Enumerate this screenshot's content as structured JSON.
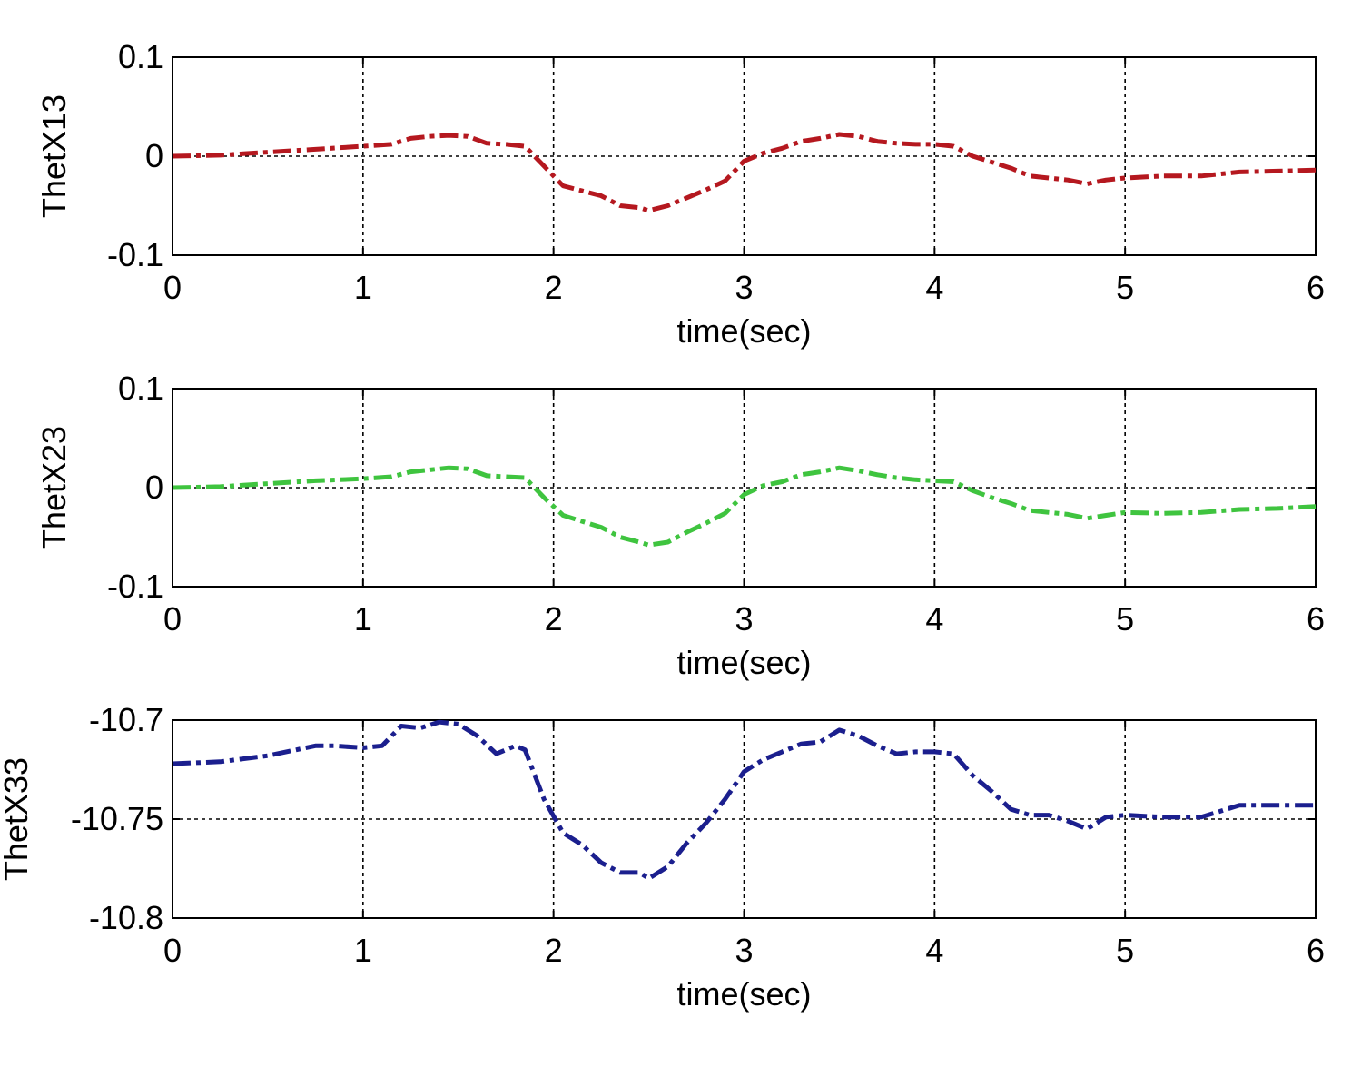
{
  "chart_data": [
    {
      "type": "line",
      "xlabel": "time(sec)",
      "ylabel": "ThetX13",
      "xlim": [
        0,
        6
      ],
      "ylim": [
        -0.1,
        0.1
      ],
      "xticks": [
        0,
        1,
        2,
        3,
        4,
        5,
        6
      ],
      "xtick_labels": [
        "0",
        "1",
        "2",
        "3",
        "4",
        "5",
        "6"
      ],
      "yticks": [
        -0.1,
        0,
        0.1
      ],
      "ytick_labels": [
        "-0.1",
        "0",
        "0.1"
      ],
      "grid": true,
      "line_style": "dash-dot",
      "color": "#b5181f",
      "series": [
        {
          "x": [
            0,
            0.25,
            0.5,
            0.75,
            1.0,
            1.15,
            1.25,
            1.35,
            1.45,
            1.55,
            1.65,
            1.75,
            1.85,
            1.95,
            2.05,
            2.15,
            2.25,
            2.35,
            2.45,
            2.5,
            2.6,
            2.7,
            2.8,
            2.9,
            3.0,
            3.1,
            3.2,
            3.3,
            3.4,
            3.5,
            3.6,
            3.7,
            3.8,
            3.9,
            4.0,
            4.1,
            4.2,
            4.3,
            4.4,
            4.5,
            4.6,
            4.7,
            4.8,
            4.9,
            5.0,
            5.2,
            5.4,
            5.6,
            5.8,
            6.0
          ],
          "y": [
            0,
            0.001,
            0.004,
            0.007,
            0.01,
            0.012,
            0.018,
            0.02,
            0.021,
            0.02,
            0.013,
            0.012,
            0.01,
            -0.01,
            -0.03,
            -0.035,
            -0.04,
            -0.05,
            -0.052,
            -0.055,
            -0.05,
            -0.042,
            -0.034,
            -0.025,
            -0.005,
            0.003,
            0.008,
            0.015,
            0.018,
            0.022,
            0.02,
            0.015,
            0.013,
            0.012,
            0.012,
            0.01,
            0.0,
            -0.006,
            -0.012,
            -0.02,
            -0.022,
            -0.024,
            -0.028,
            -0.024,
            -0.022,
            -0.02,
            -0.02,
            -0.016,
            -0.015,
            -0.014
          ]
        }
      ]
    },
    {
      "type": "line",
      "xlabel": "time(sec)",
      "ylabel": "ThetX23",
      "xlim": [
        0,
        6
      ],
      "ylim": [
        -0.1,
        0.1
      ],
      "xticks": [
        0,
        1,
        2,
        3,
        4,
        5,
        6
      ],
      "xtick_labels": [
        "0",
        "1",
        "2",
        "3",
        "4",
        "5",
        "6"
      ],
      "yticks": [
        -0.1,
        0,
        0.1
      ],
      "ytick_labels": [
        "-0.1",
        "0",
        "0.1"
      ],
      "grid": true,
      "line_style": "dash-dot",
      "color": "#3fc43f",
      "series": [
        {
          "x": [
            0,
            0.25,
            0.5,
            0.75,
            1.0,
            1.15,
            1.25,
            1.35,
            1.45,
            1.55,
            1.65,
            1.75,
            1.85,
            1.95,
            2.05,
            2.15,
            2.25,
            2.35,
            2.45,
            2.5,
            2.6,
            2.7,
            2.8,
            2.9,
            3.0,
            3.1,
            3.2,
            3.3,
            3.4,
            3.5,
            3.6,
            3.7,
            3.8,
            3.9,
            4.0,
            4.1,
            4.2,
            4.3,
            4.4,
            4.5,
            4.6,
            4.7,
            4.8,
            4.9,
            5.0,
            5.2,
            5.4,
            5.6,
            5.8,
            6.0
          ],
          "y": [
            0,
            0.001,
            0.004,
            0.007,
            0.009,
            0.011,
            0.016,
            0.018,
            0.02,
            0.019,
            0.012,
            0.011,
            0.01,
            -0.01,
            -0.028,
            -0.034,
            -0.04,
            -0.05,
            -0.055,
            -0.058,
            -0.055,
            -0.045,
            -0.036,
            -0.026,
            -0.007,
            0.002,
            0.006,
            0.013,
            0.016,
            0.02,
            0.017,
            0.013,
            0.01,
            0.008,
            0.007,
            0.006,
            -0.003,
            -0.01,
            -0.016,
            -0.023,
            -0.025,
            -0.027,
            -0.031,
            -0.028,
            -0.025,
            -0.026,
            -0.025,
            -0.022,
            -0.021,
            -0.019
          ]
        }
      ]
    },
    {
      "type": "line",
      "xlabel": "time(sec)",
      "ylabel": "ThetX33",
      "xlim": [
        0,
        6
      ],
      "ylim": [
        -10.8,
        -10.7
      ],
      "xticks": [
        0,
        1,
        2,
        3,
        4,
        5,
        6
      ],
      "xtick_labels": [
        "0",
        "1",
        "2",
        "3",
        "4",
        "5",
        "6"
      ],
      "yticks": [
        -10.8,
        -10.75,
        -10.7
      ],
      "ytick_labels": [
        "-10.8",
        "-10.75",
        "-10.7"
      ],
      "grid": true,
      "line_style": "dash-dot",
      "color": "#1b1f8e",
      "series": [
        {
          "x": [
            0,
            0.25,
            0.5,
            0.75,
            0.85,
            1.0,
            1.1,
            1.2,
            1.3,
            1.4,
            1.5,
            1.6,
            1.7,
            1.8,
            1.85,
            1.95,
            2.05,
            2.15,
            2.25,
            2.35,
            2.45,
            2.5,
            2.6,
            2.7,
            2.8,
            2.9,
            3.0,
            3.1,
            3.2,
            3.3,
            3.4,
            3.5,
            3.6,
            3.7,
            3.8,
            3.9,
            4.0,
            4.1,
            4.2,
            4.3,
            4.4,
            4.5,
            4.6,
            4.7,
            4.8,
            4.9,
            5.0,
            5.2,
            5.4,
            5.6,
            5.8,
            6.0
          ],
          "y": [
            -10.722,
            -10.721,
            -10.718,
            -10.713,
            -10.713,
            -10.714,
            -10.713,
            -10.703,
            -10.704,
            -10.701,
            -10.702,
            -10.708,
            -10.717,
            -10.713,
            -10.715,
            -10.74,
            -10.757,
            -10.763,
            -10.772,
            -10.777,
            -10.777,
            -10.78,
            -10.774,
            -10.762,
            -10.752,
            -10.74,
            -10.726,
            -10.72,
            -10.716,
            -10.712,
            -10.711,
            -10.705,
            -10.708,
            -10.713,
            -10.717,
            -10.716,
            -10.716,
            -10.717,
            -10.728,
            -10.736,
            -10.745,
            -10.748,
            -10.748,
            -10.751,
            -10.755,
            -10.749,
            -10.748,
            -10.749,
            -10.749,
            -10.743,
            -10.743,
            -10.743
          ]
        }
      ]
    }
  ]
}
